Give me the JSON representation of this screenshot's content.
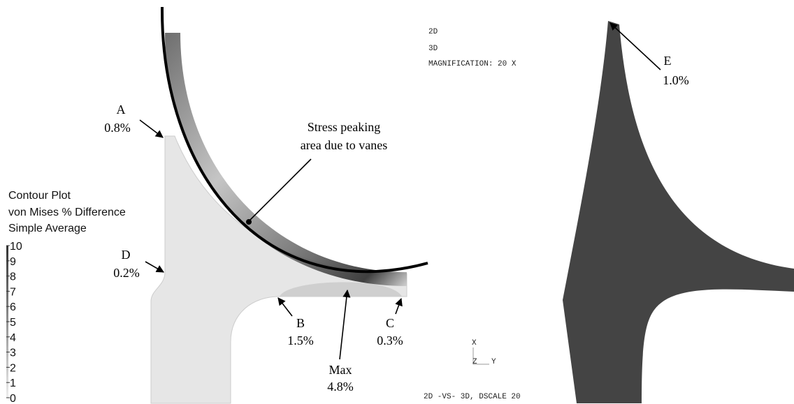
{
  "legend": {
    "title": [
      "Contour Plot",
      "von Mises % Difference",
      "Simple Average"
    ],
    "scale": [
      10,
      9,
      8,
      7,
      6,
      5,
      4,
      3,
      2,
      1,
      0
    ]
  },
  "left_annotations": [
    {
      "label": "A",
      "value": "0.8%"
    },
    {
      "label": "D",
      "value": "0.2%"
    },
    {
      "label": "B",
      "value": "1.5%"
    },
    {
      "label": "C",
      "value": "0.3%"
    },
    {
      "label": "Max",
      "value": "4.8%"
    }
  ],
  "callout": [
    "Stress peaking",
    "area due to vanes"
  ],
  "right_panel": {
    "header": [
      "2D",
      "3D",
      "MAGNIFICATION: 20 X"
    ],
    "footer": "2D -VS- 3D, DSCALE 20",
    "axes": [
      "X",
      "Z",
      "Y"
    ],
    "annotation": {
      "label": "E",
      "value": "1.0%"
    }
  }
}
